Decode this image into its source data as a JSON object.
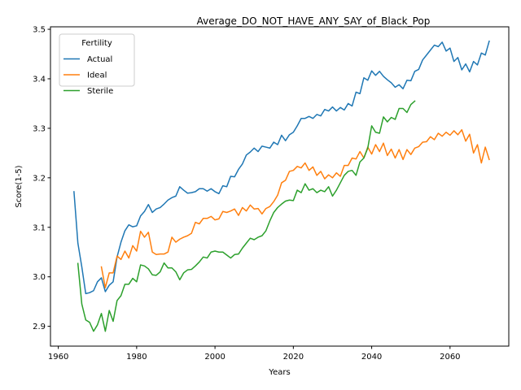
{
  "chart_data": {
    "type": "line",
    "title": "Average_DO_NOT_HAVE_ANY_SAY_of_Black_Pop",
    "xlabel": "Years",
    "ylabel": "Score(1-5)",
    "xlim": [
      1958,
      2075
    ],
    "ylim": [
      2.86,
      3.505
    ],
    "xticks": [
      1960,
      1980,
      2000,
      2020,
      2040,
      2060
    ],
    "yticks": [
      2.9,
      3.0,
      3.1,
      3.2,
      3.3,
      3.4,
      3.5
    ],
    "ytick_labels": [
      "2.9",
      "3.0",
      "3.1",
      "3.2",
      "3.3",
      "3.4",
      "3.5"
    ],
    "grid": false,
    "legend": {
      "title": "Fertility",
      "position": "top-left"
    },
    "series": [
      {
        "name": "Actual",
        "color": "#1f77b4",
        "x": [
          1964,
          1965,
          1966,
          1967,
          1968,
          1969,
          1970,
          1971,
          1972,
          1973,
          1974,
          1975,
          1976,
          1977,
          1978,
          1979,
          1980,
          1981,
          1982,
          1983,
          1984,
          1985,
          1986,
          1987,
          1988,
          1989,
          1990,
          1991,
          1992,
          1993,
          1994,
          1995,
          1996,
          1997,
          1998,
          1999,
          2000,
          2001,
          2002,
          2003,
          2004,
          2005,
          2006,
          2007,
          2008,
          2009,
          2010,
          2011,
          2012,
          2013,
          2014,
          2015,
          2016,
          2017,
          2018,
          2019,
          2020,
          2021,
          2022,
          2023,
          2024,
          2025,
          2026,
          2027,
          2028,
          2029,
          2030,
          2031,
          2032,
          2033,
          2034,
          2035,
          2036,
          2037,
          2038,
          2039,
          2040,
          2041,
          2042,
          2043,
          2044,
          2045,
          2046,
          2047,
          2048,
          2049,
          2050,
          2051,
          2052,
          2053,
          2054,
          2055,
          2056,
          2057,
          2058,
          2059,
          2060,
          2061,
          2062,
          2063,
          2064,
          2065,
          2066,
          2067,
          2068,
          2069,
          2070
        ],
        "y": [
          3.172,
          3.068,
          3.02,
          2.966,
          2.968,
          2.972,
          2.99,
          2.998,
          2.97,
          2.983,
          2.99,
          3.04,
          3.07,
          3.093,
          3.105,
          3.101,
          3.103,
          3.123,
          3.132,
          3.146,
          3.13,
          3.137,
          3.14,
          3.147,
          3.155,
          3.16,
          3.163,
          3.182,
          3.175,
          3.169,
          3.17,
          3.172,
          3.178,
          3.178,
          3.173,
          3.178,
          3.172,
          3.168,
          3.184,
          3.182,
          3.203,
          3.202,
          3.217,
          3.228,
          3.246,
          3.252,
          3.26,
          3.253,
          3.264,
          3.262,
          3.26,
          3.272,
          3.267,
          3.286,
          3.275,
          3.287,
          3.292,
          3.305,
          3.32,
          3.32,
          3.324,
          3.32,
          3.328,
          3.325,
          3.338,
          3.335,
          3.343,
          3.335,
          3.342,
          3.337,
          3.35,
          3.345,
          3.373,
          3.37,
          3.402,
          3.397,
          3.416,
          3.407,
          3.415,
          3.405,
          3.398,
          3.392,
          3.383,
          3.388,
          3.38,
          3.397,
          3.396,
          3.415,
          3.419,
          3.438,
          3.448,
          3.458,
          3.468,
          3.465,
          3.474,
          3.456,
          3.462,
          3.435,
          3.443,
          3.418,
          3.43,
          3.414,
          3.435,
          3.428,
          3.452,
          3.448,
          3.476
        ]
      },
      {
        "name": "Ideal",
        "color": "#ff7f0e",
        "x": [
          1971,
          1972,
          1973,
          1974,
          1975,
          1976,
          1977,
          1978,
          1979,
          1980,
          1981,
          1982,
          1983,
          1984,
          1985,
          1986,
          1987,
          1988,
          1989,
          1990,
          1991,
          1992,
          1993,
          1994,
          1995,
          1996,
          1997,
          1998,
          1999,
          2000,
          2001,
          2002,
          2003,
          2004,
          2005,
          2006,
          2007,
          2008,
          2009,
          2010,
          2011,
          2012,
          2013,
          2014,
          2015,
          2016,
          2017,
          2018,
          2019,
          2020,
          2021,
          2022,
          2023,
          2024,
          2025,
          2026,
          2027,
          2028,
          2029,
          2030,
          2031,
          2032,
          2033,
          2034,
          2035,
          2036,
          2037,
          2038,
          2039,
          2040,
          2041,
          2042,
          2043,
          2044,
          2045,
          2046,
          2047,
          2048,
          2049,
          2050,
          2051,
          2052,
          2053,
          2054,
          2055,
          2056,
          2057,
          2058,
          2059,
          2060,
          2061,
          2062,
          2063,
          2064,
          2065,
          2066,
          2067,
          2068,
          2069,
          2070
        ],
        "y": [
          3.02,
          2.978,
          3.008,
          3.008,
          3.042,
          3.035,
          3.052,
          3.038,
          3.063,
          3.052,
          3.092,
          3.08,
          3.09,
          3.05,
          3.045,
          3.046,
          3.046,
          3.05,
          3.08,
          3.07,
          3.076,
          3.08,
          3.083,
          3.088,
          3.11,
          3.107,
          3.118,
          3.118,
          3.122,
          3.115,
          3.117,
          3.132,
          3.13,
          3.133,
          3.137,
          3.124,
          3.14,
          3.133,
          3.145,
          3.137,
          3.138,
          3.127,
          3.138,
          3.142,
          3.152,
          3.165,
          3.19,
          3.195,
          3.213,
          3.215,
          3.223,
          3.22,
          3.23,
          3.215,
          3.222,
          3.205,
          3.213,
          3.198,
          3.206,
          3.2,
          3.21,
          3.203,
          3.225,
          3.225,
          3.24,
          3.238,
          3.253,
          3.24,
          3.262,
          3.248,
          3.267,
          3.253,
          3.27,
          3.245,
          3.258,
          3.24,
          3.257,
          3.237,
          3.257,
          3.247,
          3.26,
          3.263,
          3.272,
          3.273,
          3.283,
          3.277,
          3.29,
          3.284,
          3.292,
          3.286,
          3.295,
          3.287,
          3.297,
          3.274,
          3.288,
          3.25,
          3.267,
          3.23,
          3.262,
          3.237
        ]
      },
      {
        "name": "Sterile",
        "color": "#2ca02c",
        "x": [
          1965,
          1966,
          1967,
          1968,
          1969,
          1970,
          1971,
          1972,
          1973,
          1974,
          1975,
          1976,
          1977,
          1978,
          1979,
          1980,
          1981,
          1982,
          1983,
          1984,
          1985,
          1986,
          1987,
          1988,
          1989,
          1990,
          1991,
          1992,
          1993,
          1994,
          1995,
          1996,
          1997,
          1998,
          1999,
          2000,
          2001,
          2002,
          2003,
          2004,
          2005,
          2006,
          2007,
          2008,
          2009,
          2010,
          2011,
          2012,
          2013,
          2014,
          2015,
          2016,
          2017,
          2018,
          2019,
          2020,
          2021,
          2022,
          2023,
          2024,
          2025,
          2026,
          2027,
          2028,
          2029,
          2030,
          2031,
          2032,
          2033,
          2034,
          2035,
          2036,
          2037,
          2038,
          2039,
          2040,
          2041,
          2042,
          2043,
          2044,
          2045,
          2046,
          2047,
          2048,
          2049,
          2050,
          2051
        ],
        "y": [
          3.027,
          2.945,
          2.913,
          2.908,
          2.89,
          2.903,
          2.926,
          2.89,
          2.932,
          2.91,
          2.952,
          2.962,
          2.985,
          2.985,
          2.997,
          2.99,
          3.024,
          3.022,
          3.016,
          3.004,
          3.003,
          3.01,
          3.028,
          3.018,
          3.018,
          3.01,
          2.994,
          3.008,
          3.014,
          3.015,
          3.022,
          3.03,
          3.04,
          3.038,
          3.05,
          3.052,
          3.05,
          3.05,
          3.044,
          3.038,
          3.045,
          3.046,
          3.058,
          3.068,
          3.078,
          3.075,
          3.08,
          3.083,
          3.093,
          3.113,
          3.13,
          3.14,
          3.147,
          3.153,
          3.155,
          3.154,
          3.175,
          3.17,
          3.188,
          3.175,
          3.178,
          3.17,
          3.175,
          3.172,
          3.182,
          3.163,
          3.175,
          3.19,
          3.205,
          3.213,
          3.215,
          3.205,
          3.232,
          3.24,
          3.26,
          3.305,
          3.292,
          3.29,
          3.323,
          3.313,
          3.322,
          3.318,
          3.34,
          3.34,
          3.332,
          3.348,
          3.355
        ]
      }
    ]
  }
}
